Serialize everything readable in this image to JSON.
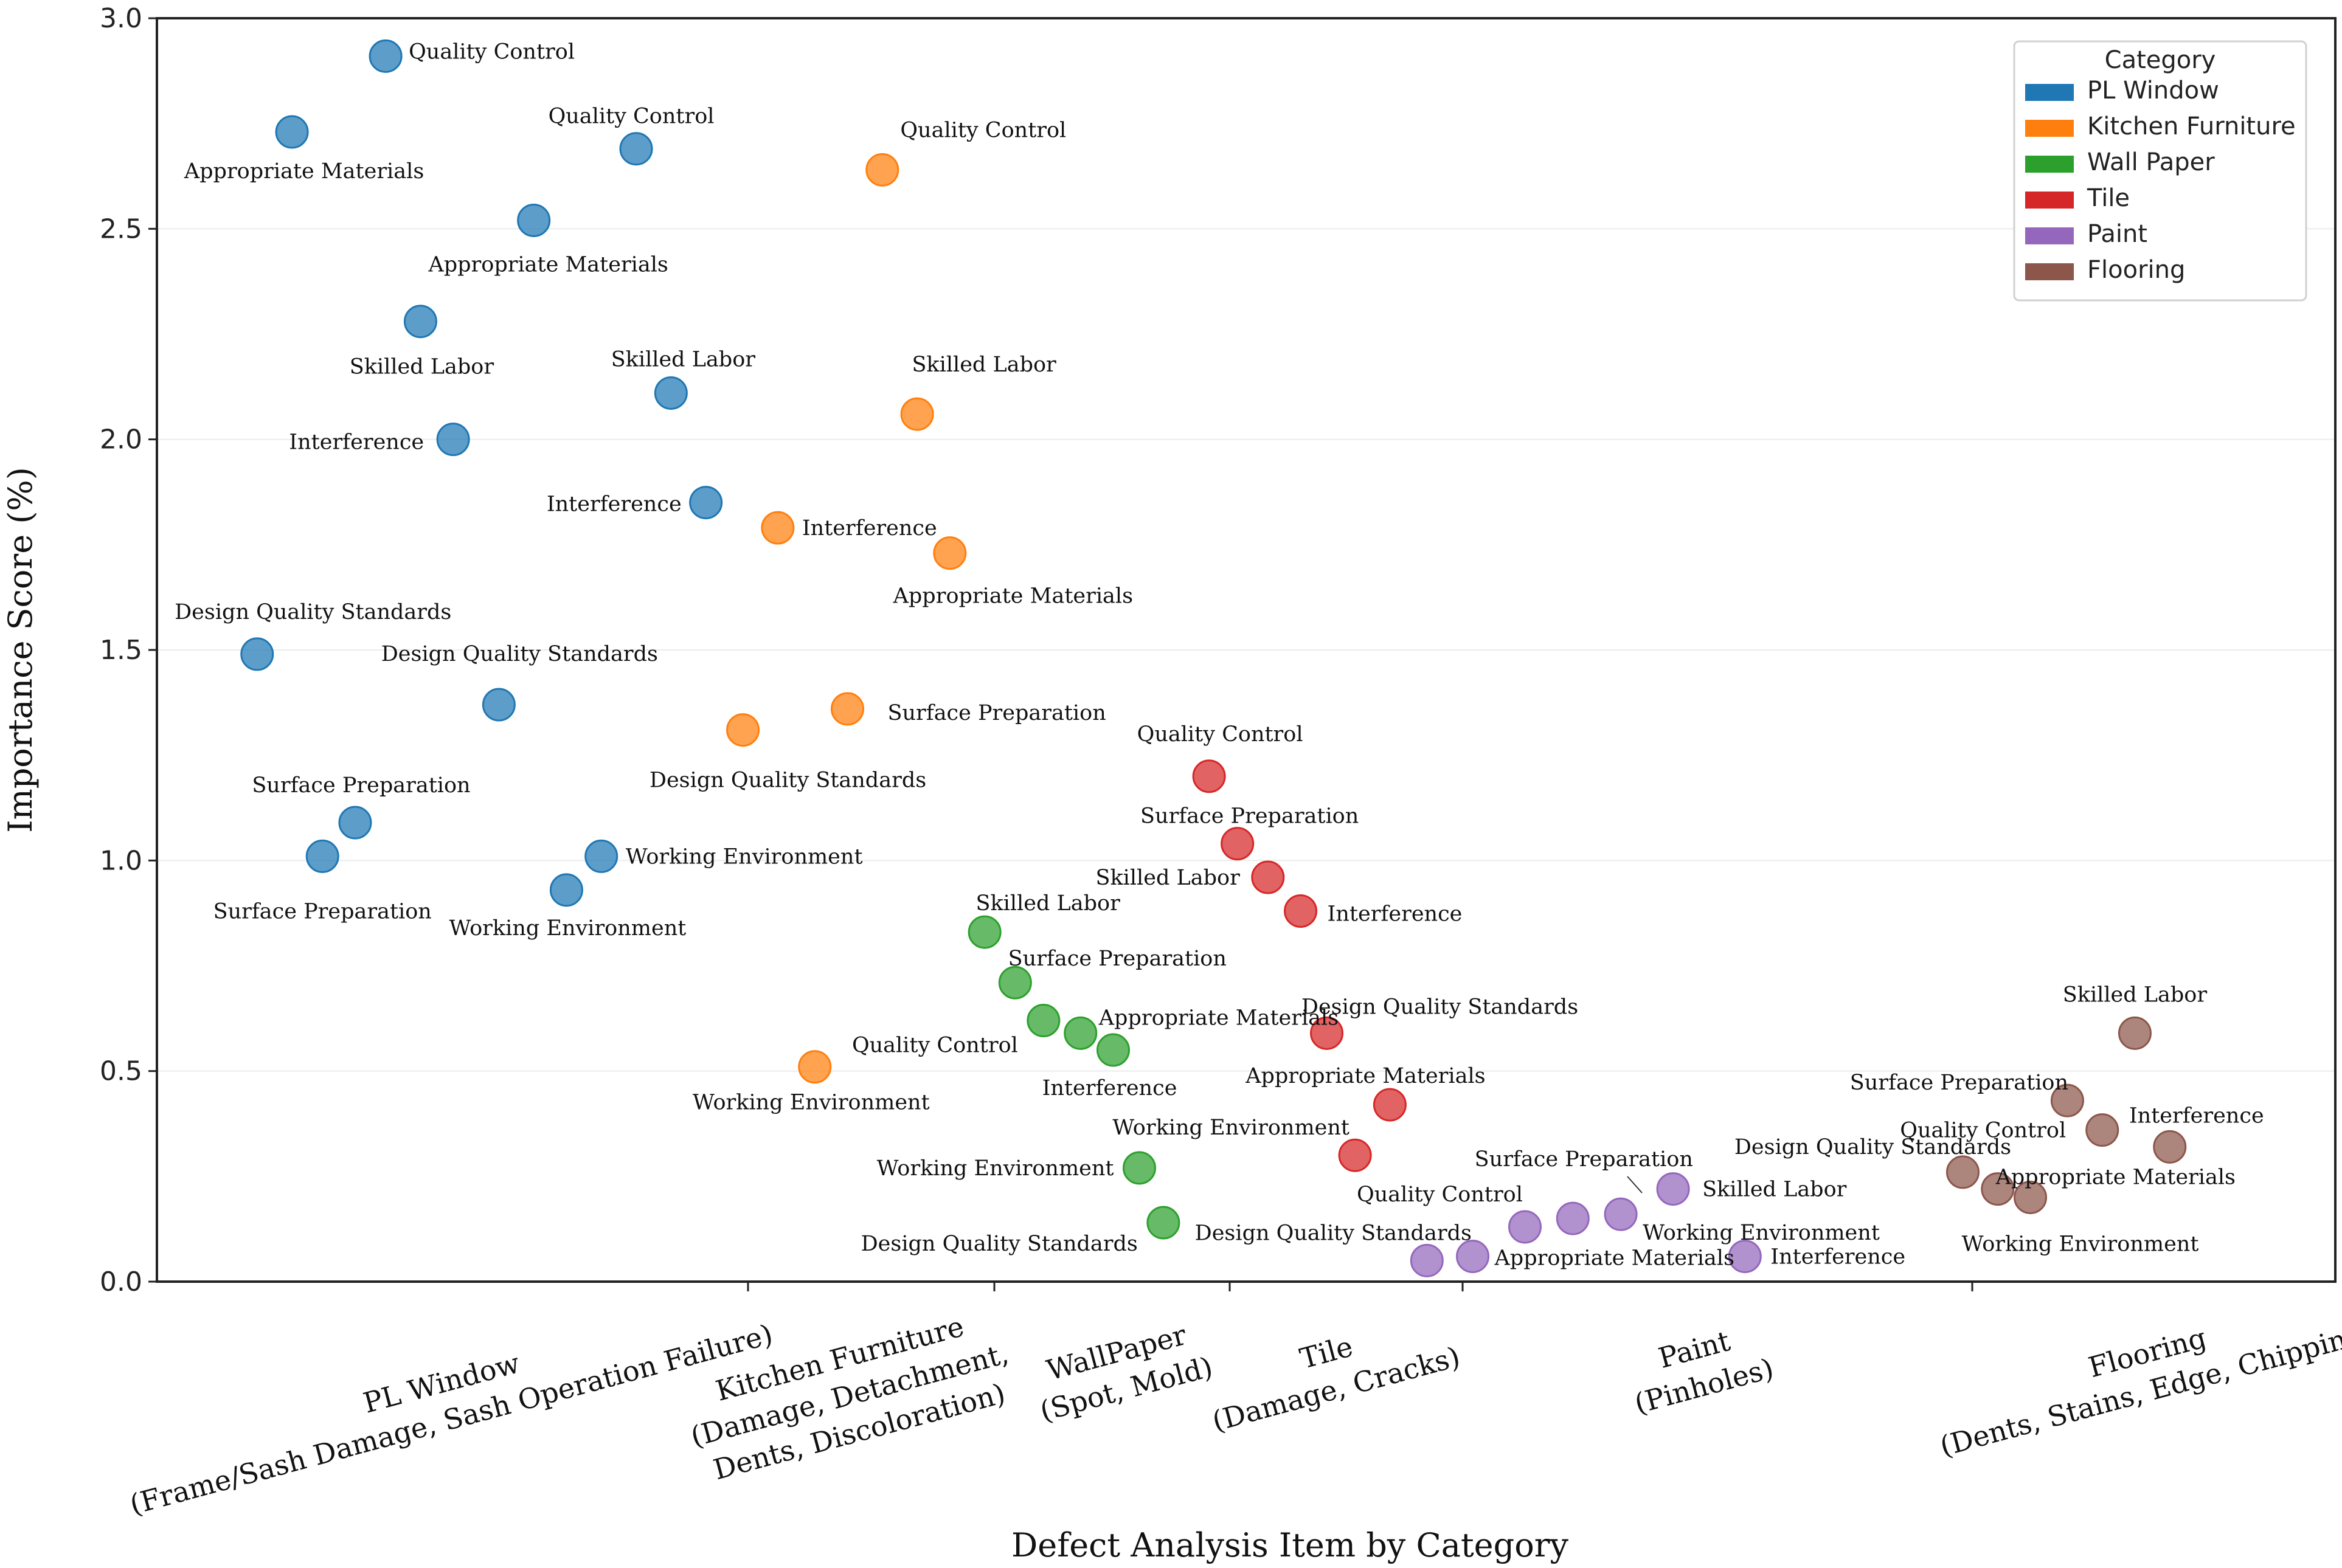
{
  "chart_data": {
    "type": "scatter",
    "title": "",
    "xlabel": "Defect Analysis Item by Category",
    "ylabel": "Importance Score (%)",
    "ylim": [
      0,
      3.0
    ],
    "xlim": [
      0,
      100
    ],
    "yticks": [
      "0.0",
      "0.5",
      "1.0",
      "1.5",
      "2.0",
      "2.5",
      "3.0"
    ],
    "grid": "horizontal",
    "legend": {
      "title": "Category",
      "position": "top-right",
      "entries": [
        "PL Window",
        "Kitchen Furniture",
        "Wall Paper",
        "Tile",
        "Paint",
        "Flooring"
      ]
    },
    "category_labels": [
      {
        "lines": [
          "PL Window",
          "(Frame/Sash Damage, Sash Operation Failure)"
        ]
      },
      {
        "lines": [
          "Kitchen Furniture",
          "(Damage, Detachment,",
          "Dents, Discoloration)"
        ]
      },
      {
        "lines": [
          "WallPaper",
          "(Spot, Mold)"
        ]
      },
      {
        "lines": [
          "Tile",
          "(Damage, Cracks)"
        ]
      },
      {
        "lines": [
          "Paint",
          "(Pinholes)"
        ]
      },
      {
        "lines": [
          "Flooring",
          "(Dents, Stains, Edge, Chipping)"
        ]
      }
    ],
    "series": [
      {
        "name": "PL Window",
        "color": "#1f77b4",
        "points": [
          {
            "x": 10.5,
            "y": 2.91,
            "label": "Quality Control"
          },
          {
            "x": 6.2,
            "y": 2.73,
            "label": "Appropriate Materials"
          },
          {
            "x": 22.0,
            "y": 2.69,
            "label": "Quality Control"
          },
          {
            "x": 17.3,
            "y": 2.52,
            "label": "Appropriate Materials"
          },
          {
            "x": 12.1,
            "y": 2.28,
            "label": "Skilled Labor"
          },
          {
            "x": 23.6,
            "y": 2.11,
            "label": "Skilled Labor"
          },
          {
            "x": 13.6,
            "y": 2.0,
            "label": "Interference"
          },
          {
            "x": 25.2,
            "y": 1.85,
            "label": "Interference"
          },
          {
            "x": 4.6,
            "y": 1.49,
            "label": "Design Quality Standards"
          },
          {
            "x": 15.7,
            "y": 1.37,
            "label": "Design Quality Standards"
          },
          {
            "x": 9.1,
            "y": 1.09,
            "label": "Surface Preparation"
          },
          {
            "x": 7.6,
            "y": 1.01,
            "label": "Surface Preparation"
          },
          {
            "x": 20.4,
            "y": 1.01,
            "label": "Working Environment"
          },
          {
            "x": 18.8,
            "y": 0.93,
            "label": "Working Environment"
          }
        ]
      },
      {
        "name": "Kitchen Furniture",
        "color": "#ff7f0e",
        "points": [
          {
            "x": 33.3,
            "y": 2.64,
            "label": "Quality Control"
          },
          {
            "x": 34.9,
            "y": 2.06,
            "label": "Skilled Labor"
          },
          {
            "x": 28.5,
            "y": 1.79,
            "label": "Interference"
          },
          {
            "x": 36.4,
            "y": 1.73,
            "label": "Appropriate Materials"
          },
          {
            "x": 31.7,
            "y": 1.36,
            "label": "Surface Preparation"
          },
          {
            "x": 26.9,
            "y": 1.31,
            "label": "Design Quality Standards"
          },
          {
            "x": 30.2,
            "y": 0.51,
            "label": "Working Environment"
          }
        ]
      },
      {
        "name": "Wall Paper",
        "color": "#2ca02c",
        "points": [
          {
            "x": 38.0,
            "y": 0.83,
            "label": "Skilled Labor"
          },
          {
            "x": 39.4,
            "y": 0.71,
            "label": "Surface Preparation"
          },
          {
            "x": 40.7,
            "y": 0.62,
            "label": "Quality Control"
          },
          {
            "x": 42.4,
            "y": 0.59,
            "label": "Appropriate Materials"
          },
          {
            "x": 43.9,
            "y": 0.55,
            "label": "Interference"
          },
          {
            "x": 45.1,
            "y": 0.27,
            "label": "Working Environment"
          },
          {
            "x": 46.2,
            "y": 0.14,
            "label": "Design Quality Standards"
          }
        ]
      },
      {
        "name": "Tile",
        "color": "#d62728",
        "points": [
          {
            "x": 48.3,
            "y": 1.2,
            "label": "Quality Control"
          },
          {
            "x": 49.6,
            "y": 1.04,
            "label": "Surface Preparation"
          },
          {
            "x": 51.0,
            "y": 0.96,
            "label": "Skilled Labor"
          },
          {
            "x": 52.5,
            "y": 0.88,
            "label": "Interference"
          },
          {
            "x": 53.7,
            "y": 0.59,
            "label": "Design Quality Standards"
          },
          {
            "x": 56.6,
            "y": 0.42,
            "label": "Appropriate Materials"
          },
          {
            "x": 55.0,
            "y": 0.3,
            "label": "Working Environment"
          }
        ]
      },
      {
        "name": "Paint",
        "color": "#9467bd",
        "points": [
          {
            "x": 69.6,
            "y": 0.22,
            "label": "Skilled Labor"
          },
          {
            "x": 65.0,
            "y": 0.15,
            "label": "Surface Preparation"
          },
          {
            "x": 67.2,
            "y": 0.16,
            "label": "Working Environment"
          },
          {
            "x": 62.8,
            "y": 0.13,
            "label": "Quality Control"
          },
          {
            "x": 60.4,
            "y": 0.06,
            "label": "Appropriate Materials"
          },
          {
            "x": 58.3,
            "y": 0.05,
            "label": "Design Quality Standards"
          },
          {
            "x": 72.9,
            "y": 0.06,
            "label": "Interference"
          }
        ]
      },
      {
        "name": "Flooring",
        "color": "#8c564b",
        "points": [
          {
            "x": 90.8,
            "y": 0.59,
            "label": "Skilled Labor"
          },
          {
            "x": 87.7,
            "y": 0.43,
            "label": "Surface Preparation"
          },
          {
            "x": 89.3,
            "y": 0.36,
            "label": "Quality Control"
          },
          {
            "x": 92.4,
            "y": 0.32,
            "label": "Interference"
          },
          {
            "x": 82.9,
            "y": 0.26,
            "label": "Design Quality Standards"
          },
          {
            "x": 84.5,
            "y": 0.22,
            "label": "Appropriate Materials"
          },
          {
            "x": 86.0,
            "y": 0.2,
            "label": "Working Environment"
          }
        ]
      }
    ]
  }
}
